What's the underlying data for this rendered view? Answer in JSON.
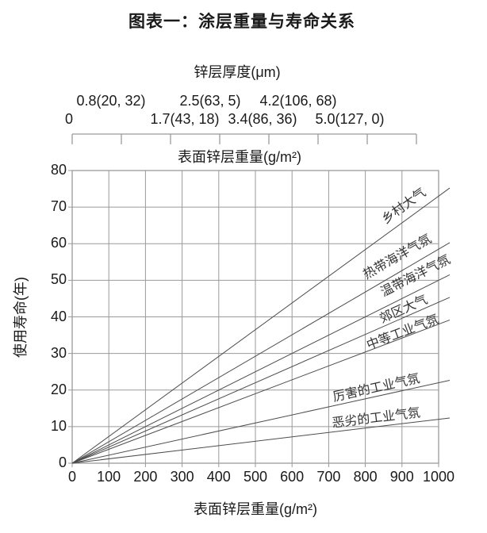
{
  "title": "图表一：涂层重量与寿命关系",
  "top_axis": {
    "title": "锌层厚度(μm)",
    "subtitle": "表面锌层重量(g/m²)",
    "row_upper": [
      {
        "label": "0.8(20, 32)"
      },
      {
        "label": "2.5(63, 5)"
      },
      {
        "label": "4.2(106, 68)"
      }
    ],
    "row_lower": [
      {
        "label": "0"
      },
      {
        "label": "1.7(43, 18)"
      },
      {
        "label": "3.4(86, 36)"
      },
      {
        "label": "5.0(127, 0)"
      }
    ]
  },
  "chart_data": {
    "type": "line",
    "title": "图表一：涂层重量与寿命关系",
    "xlabel": "表面锌层重量(g/m²)",
    "ylabel": "使用寿命(年)",
    "xlim": [
      0,
      1000
    ],
    "ylim": [
      0,
      80
    ],
    "x_ticks": [
      0,
      100,
      200,
      300,
      400,
      500,
      600,
      700,
      800,
      900,
      1000
    ],
    "y_ticks": [
      0,
      10,
      20,
      30,
      40,
      50,
      60,
      70,
      80
    ],
    "grid": true,
    "legend_position": "labels-on-lines",
    "series": [
      {
        "name": "乡村大气",
        "x": [
          0,
          1000
        ],
        "y": [
          0,
          73
        ]
      },
      {
        "name": "热带海洋气氛",
        "x": [
          0,
          1000
        ],
        "y": [
          0,
          58.5
        ]
      },
      {
        "name": "温带海洋气氛",
        "x": [
          0,
          1000
        ],
        "y": [
          0,
          50
        ]
      },
      {
        "name": "郊区大气",
        "x": [
          0,
          1000
        ],
        "y": [
          0,
          44
        ]
      },
      {
        "name": "中等工业气氛",
        "x": [
          0,
          1000
        ],
        "y": [
          0,
          38
        ]
      },
      {
        "name": "厉害的工业气氛",
        "x": [
          0,
          1000
        ],
        "y": [
          0,
          22
        ]
      },
      {
        "name": "恶劣的工业气氛",
        "x": [
          0,
          1000
        ],
        "y": [
          0,
          12
        ]
      }
    ]
  },
  "colors": {
    "background": "#ffffff",
    "grid": "#9a9a9a",
    "line": "#4d4d4d",
    "text": "#1a1a1a"
  }
}
